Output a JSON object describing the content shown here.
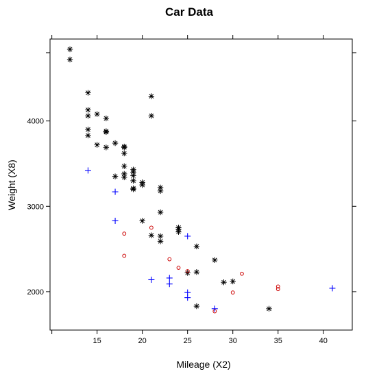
{
  "chart_data": {
    "type": "scatter",
    "title": "Car Data",
    "xlabel": "Mileage (X2)",
    "ylabel": "Weight (X8)",
    "xlim": [
      9.8,
      43.2
    ],
    "ylim": [
      1550,
      4960
    ],
    "xticks": [
      15,
      20,
      25,
      30,
      35,
      40
    ],
    "yticks": [
      2000,
      3000,
      4000
    ],
    "legend": "none",
    "grid": false,
    "series": [
      {
        "marker": "asterisk",
        "color": "#000000",
        "points": [
          [
            12,
            4840
          ],
          [
            12,
            4720
          ],
          [
            14,
            4330
          ],
          [
            14,
            4130
          ],
          [
            14,
            4060
          ],
          [
            14,
            3900
          ],
          [
            14,
            3830
          ],
          [
            15,
            4080
          ],
          [
            15,
            3720
          ],
          [
            16,
            4030
          ],
          [
            16,
            3880
          ],
          [
            16,
            3870
          ],
          [
            16,
            3690
          ],
          [
            17,
            3740
          ],
          [
            17,
            3350
          ],
          [
            18,
            3700
          ],
          [
            18,
            3690
          ],
          [
            18,
            3620
          ],
          [
            18,
            3470
          ],
          [
            18,
            3380
          ],
          [
            18,
            3340
          ],
          [
            19,
            3430
          ],
          [
            19,
            3400
          ],
          [
            19,
            3360
          ],
          [
            19,
            3300
          ],
          [
            19,
            3210
          ],
          [
            19,
            3200
          ],
          [
            20,
            3280
          ],
          [
            20,
            3250
          ],
          [
            20,
            2830
          ],
          [
            21,
            4290
          ],
          [
            21,
            4060
          ],
          [
            21,
            2660
          ],
          [
            22,
            3220
          ],
          [
            22,
            3180
          ],
          [
            22,
            2930
          ],
          [
            22,
            2650
          ],
          [
            22,
            2590
          ],
          [
            24,
            2750
          ],
          [
            24,
            2730
          ],
          [
            24,
            2700
          ],
          [
            25,
            2220
          ],
          [
            26,
            2530
          ],
          [
            26,
            2230
          ],
          [
            26,
            1830
          ],
          [
            28,
            2370
          ],
          [
            29,
            2110
          ],
          [
            30,
            2120
          ],
          [
            34,
            1800
          ]
        ]
      },
      {
        "marker": "circle",
        "color": "#cc0000",
        "points": [
          [
            18,
            2680
          ],
          [
            18,
            2420
          ],
          [
            21,
            2750
          ],
          [
            23,
            2380
          ],
          [
            24,
            2280
          ],
          [
            25,
            2240
          ],
          [
            28,
            1770
          ],
          [
            30,
            1990
          ],
          [
            31,
            2210
          ],
          [
            35,
            2060
          ],
          [
            35,
            2030
          ]
        ]
      },
      {
        "marker": "plus",
        "color": "#0000ff",
        "points": [
          [
            14,
            3420
          ],
          [
            17,
            3170
          ],
          [
            17,
            2830
          ],
          [
            21,
            2140
          ],
          [
            23,
            2160
          ],
          [
            23,
            2090
          ],
          [
            25,
            2650
          ],
          [
            25,
            1990
          ],
          [
            25,
            1930
          ],
          [
            28,
            1800
          ],
          [
            41,
            2040
          ]
        ]
      }
    ]
  }
}
